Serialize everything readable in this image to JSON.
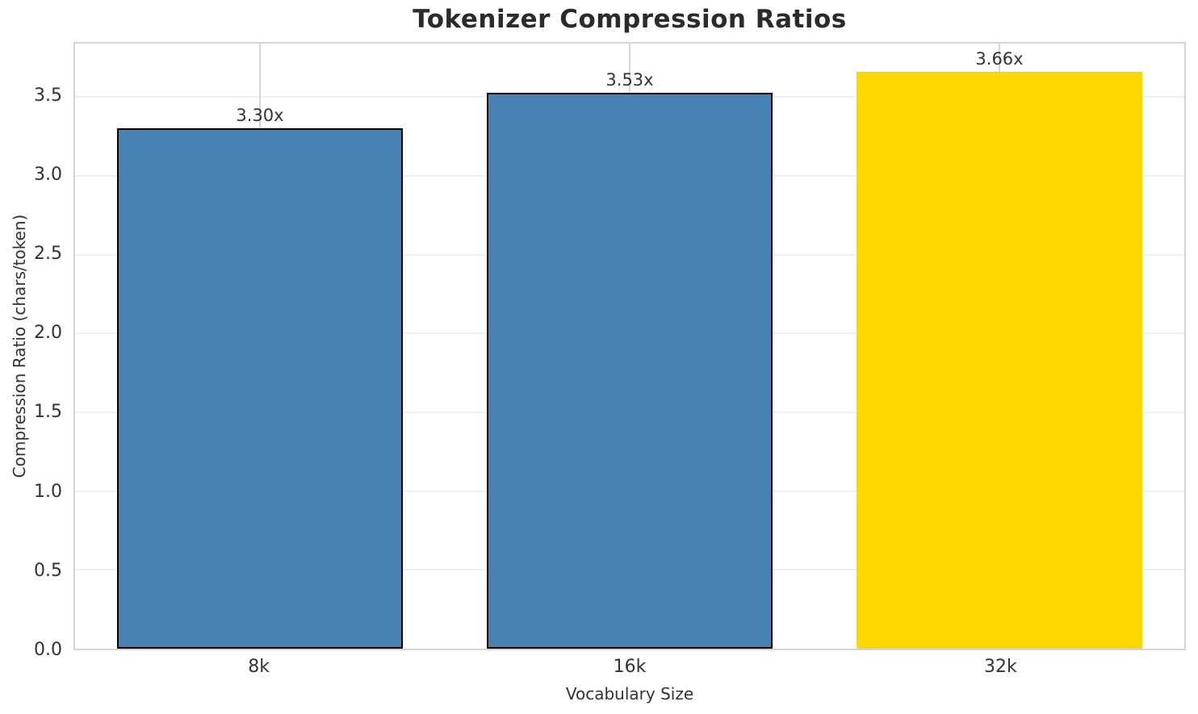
{
  "chart_data": {
    "type": "bar",
    "title": "Tokenizer Compression Ratios",
    "xlabel": "Vocabulary Size",
    "ylabel": "Compression Ratio (chars/token)",
    "categories": [
      "8k",
      "16k",
      "32k"
    ],
    "values": [
      3.3,
      3.53,
      3.66
    ],
    "bar_labels": [
      "3.30x",
      "3.53x",
      "3.66x"
    ],
    "bar_colors": [
      "#4682B4",
      "#4682B4",
      "#FFD700"
    ],
    "bar_edge_colors": [
      "#000000",
      "#000000",
      "none"
    ],
    "ylim": [
      0,
      3.84
    ],
    "yticks": [
      0.0,
      0.5,
      1.0,
      1.5,
      2.0,
      2.5,
      3.0,
      3.5
    ],
    "ytick_labels": [
      "0.0",
      "0.5",
      "1.0",
      "1.5",
      "2.0",
      "2.5",
      "3.0",
      "3.5"
    ],
    "grid": true,
    "legend": false,
    "hgrid_color": "#f0f0f0",
    "vgrid_color": "#d5d5d5",
    "spine_color": "#d5d5d5",
    "text_color": "#333333",
    "title_color": "#2b2b2b"
  }
}
